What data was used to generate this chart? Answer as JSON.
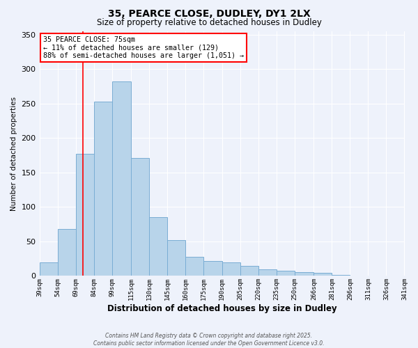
{
  "title": "35, PEARCE CLOSE, DUDLEY, DY1 2LX",
  "subtitle": "Size of property relative to detached houses in Dudley",
  "xlabel": "Distribution of detached houses by size in Dudley",
  "ylabel": "Number of detached properties",
  "bar_color": "#b8d4ea",
  "bar_edge_color": "#7aadd4",
  "background_color": "#eef2fb",
  "grid_color": "#ffffff",
  "vline_x": 75,
  "vline_color": "red",
  "annotation_title": "35 PEARCE CLOSE: 75sqm",
  "annotation_line1": "← 11% of detached houses are smaller (129)",
  "annotation_line2": "88% of semi-detached houses are larger (1,051) →",
  "annotation_box_color": "#ffffff",
  "annotation_box_edge": "red",
  "bin_edges": [
    39,
    54,
    69,
    84,
    99,
    115,
    130,
    145,
    160,
    175,
    190,
    205,
    220,
    235,
    250,
    266,
    281,
    296,
    311,
    326,
    341
  ],
  "bin_labels": [
    "39sqm",
    "54sqm",
    "69sqm",
    "84sqm",
    "99sqm",
    "115sqm",
    "130sqm",
    "145sqm",
    "160sqm",
    "175sqm",
    "190sqm",
    "205sqm",
    "220sqm",
    "235sqm",
    "250sqm",
    "266sqm",
    "281sqm",
    "296sqm",
    "311sqm",
    "326sqm",
    "341sqm"
  ],
  "bar_heights": [
    20,
    68,
    177,
    253,
    282,
    171,
    85,
    52,
    28,
    22,
    20,
    15,
    10,
    7,
    5,
    4,
    1,
    0,
    0,
    0
  ],
  "ylim": [
    0,
    355
  ],
  "yticks": [
    0,
    50,
    100,
    150,
    200,
    250,
    300,
    350
  ],
  "footer_line1": "Contains HM Land Registry data © Crown copyright and database right 2025.",
  "footer_line2": "Contains public sector information licensed under the Open Government Licence v3.0."
}
